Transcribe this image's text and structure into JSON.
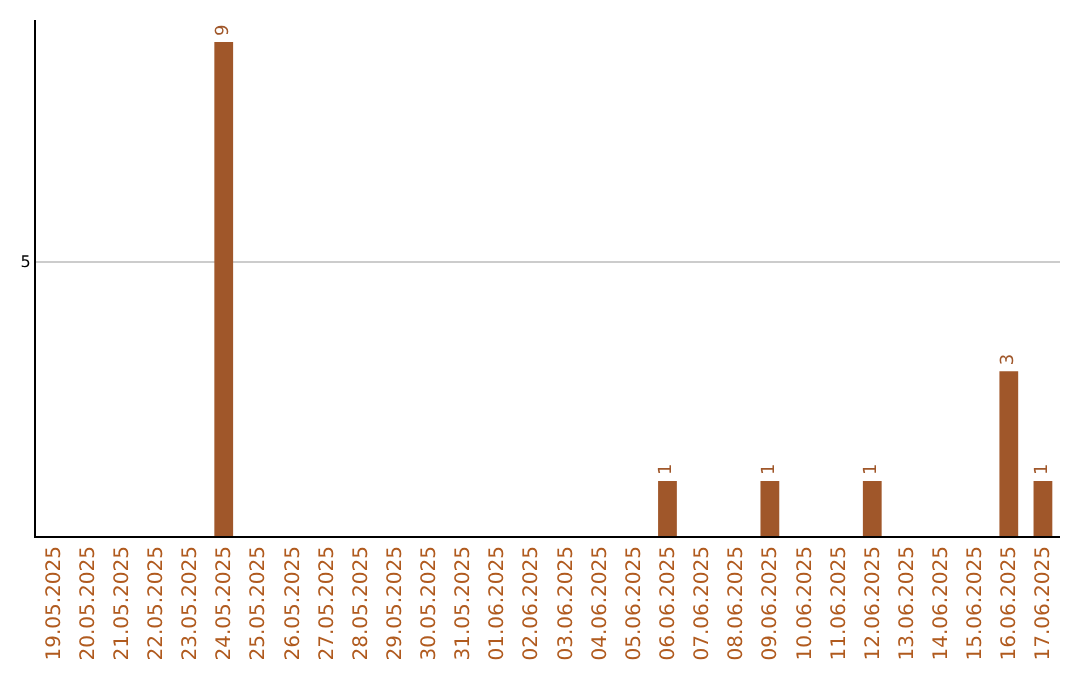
{
  "chart_data": {
    "type": "bar",
    "categories": [
      "19.05.2025",
      "20.05.2025",
      "21.05.2025",
      "22.05.2025",
      "23.05.2025",
      "24.05.2025",
      "25.05.2025",
      "26.05.2025",
      "27.05.2025",
      "28.05.2025",
      "29.05.2025",
      "30.05.2025",
      "31.05.2025",
      "01.06.2025",
      "02.06.2025",
      "03.06.2025",
      "04.06.2025",
      "05.06.2025",
      "06.06.2025",
      "07.06.2025",
      "08.06.2025",
      "09.06.2025",
      "10.06.2025",
      "11.06.2025",
      "12.06.2025",
      "13.06.2025",
      "14.06.2025",
      "15.06.2025",
      "16.06.2025",
      "17.06.2025"
    ],
    "values": [
      0,
      0,
      0,
      0,
      0,
      9,
      0,
      0,
      0,
      0,
      0,
      0,
      0,
      0,
      0,
      0,
      0,
      0,
      1,
      0,
      0,
      1,
      0,
      0,
      1,
      0,
      0,
      0,
      3,
      1
    ],
    "value_labels": [
      null,
      null,
      null,
      null,
      null,
      "9",
      null,
      null,
      null,
      null,
      null,
      null,
      null,
      null,
      null,
      null,
      null,
      null,
      "1",
      null,
      null,
      "1",
      null,
      null,
      "1",
      null,
      null,
      null,
      "3",
      "1"
    ],
    "color": "#a0572a",
    "ylim": [
      0,
      9.4
    ],
    "yticks": [
      5
    ],
    "grid": "y",
    "legend": false
  }
}
